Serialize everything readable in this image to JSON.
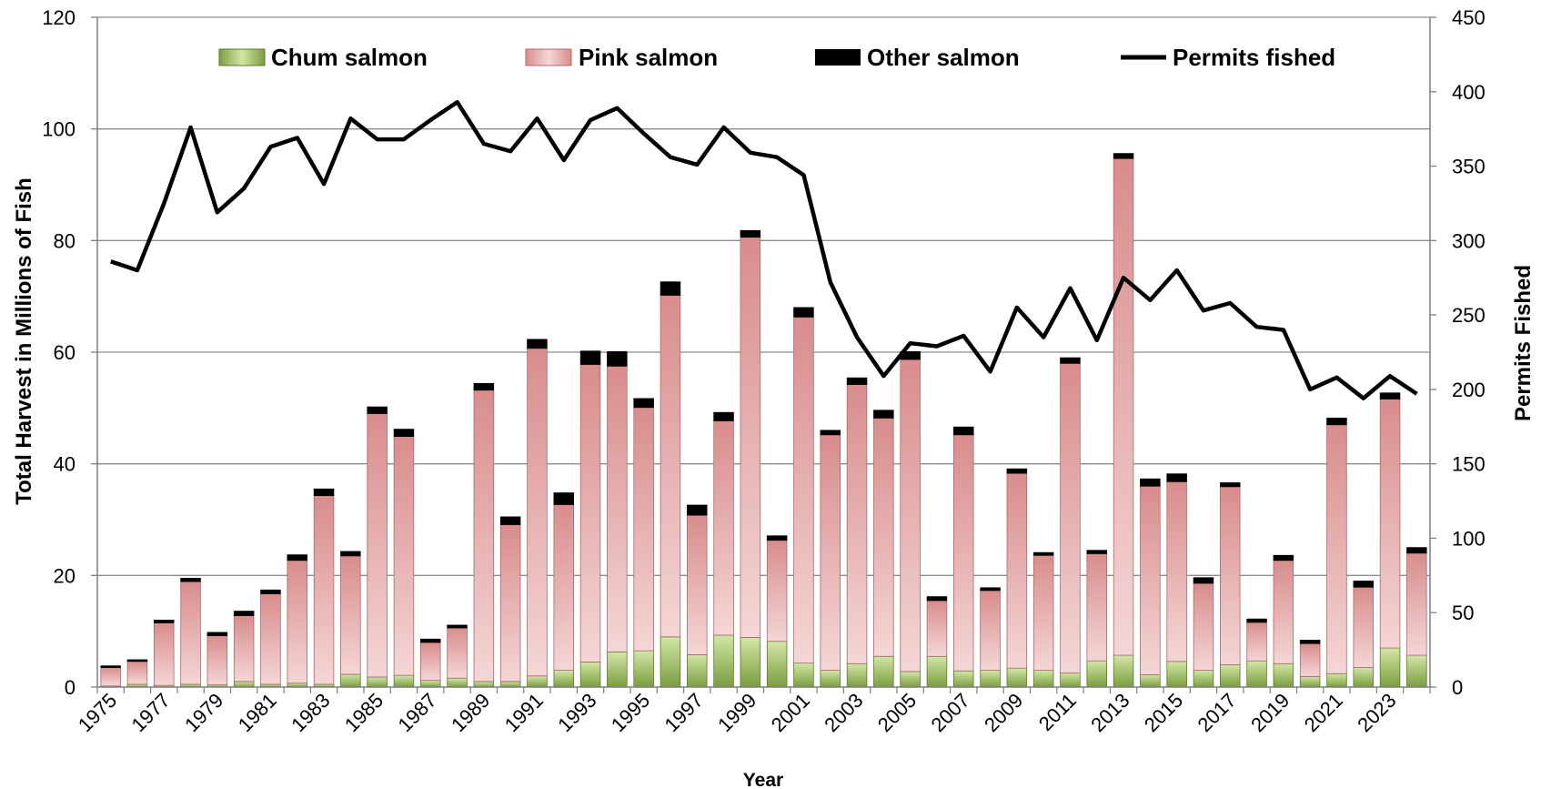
{
  "chart_data": {
    "type": "bar",
    "subtype": "stacked bar with line on secondary axis",
    "xlabel": "Year",
    "ylabel": "Total Harvest in Millions  of Fish",
    "y2label": "Permits Fished",
    "ylim": [
      0,
      120
    ],
    "y2lim": [
      0,
      450
    ],
    "yticks": [
      0,
      20,
      40,
      60,
      80,
      100,
      120
    ],
    "y2ticks": [
      0,
      50,
      100,
      150,
      200,
      250,
      300,
      350,
      400,
      450
    ],
    "grid": "horizontal",
    "legend_position": "top",
    "categories": [
      1975,
      1976,
      1977,
      1978,
      1979,
      1980,
      1981,
      1982,
      1983,
      1984,
      1985,
      1986,
      1987,
      1988,
      1989,
      1990,
      1991,
      1992,
      1993,
      1994,
      1995,
      1996,
      1997,
      1998,
      1999,
      2000,
      2001,
      2002,
      2003,
      2004,
      2005,
      2006,
      2007,
      2008,
      2009,
      2010,
      2011,
      2012,
      2013,
      2014,
      2015,
      2016,
      2017,
      2018,
      2019,
      2020,
      2021,
      2022,
      2023,
      2024
    ],
    "xtick_labels": [
      "1975",
      "1977",
      "1979",
      "1981",
      "1983",
      "1985",
      "1987",
      "1989",
      "1991",
      "1993",
      "1995",
      "1997",
      "1999",
      "2001",
      "2003",
      "2005",
      "2007",
      "2009",
      "2011",
      "2013",
      "2015",
      "2017",
      "2019",
      "2021",
      "2023"
    ],
    "series": [
      {
        "name": "Chum salmon",
        "axis": "left",
        "color": "#8db04f",
        "values": [
          0.2,
          0.5,
          0.3,
          0.5,
          0.4,
          1.0,
          0.5,
          0.7,
          0.5,
          2.3,
          1.8,
          2.1,
          1.2,
          1.6,
          1.0,
          1.0,
          2.0,
          3.0,
          4.5,
          6.3,
          6.5,
          9.0,
          5.8,
          9.3,
          8.9,
          8.2,
          4.3,
          3.0,
          4.2,
          5.5,
          2.8,
          5.5,
          2.9,
          3.0,
          3.4,
          3.0,
          2.5,
          4.7,
          5.7,
          2.2,
          4.6,
          3.0,
          4.0,
          4.7,
          4.2,
          1.9,
          2.4,
          3.5,
          7.0,
          5.7
        ]
      },
      {
        "name": "Pink salmon",
        "axis": "left",
        "color": "#d98f8f",
        "values": [
          3.3,
          4.1,
          11.2,
          18.4,
          8.8,
          11.8,
          16.2,
          22.0,
          33.8,
          21.2,
          47.2,
          42.8,
          6.8,
          9.0,
          52.2,
          28.1,
          58.7,
          29.7,
          53.3,
          51.2,
          43.6,
          61.2,
          25.0,
          38.4,
          71.7,
          18.1,
          62.0,
          42.2,
          50.0,
          42.7,
          55.9,
          10.0,
          42.3,
          14.3,
          34.9,
          20.6,
          55.5,
          19.2,
          89.0,
          33.8,
          32.2,
          15.6,
          31.9,
          6.9,
          18.5,
          5.9,
          44.6,
          14.4,
          44.6,
          18.3
        ]
      },
      {
        "name": "Other salmon",
        "axis": "left",
        "color": "#000000",
        "values": [
          0.3,
          0.3,
          0.5,
          0.6,
          0.6,
          0.8,
          0.7,
          1.0,
          1.2,
          0.8,
          1.2,
          1.3,
          0.6,
          0.5,
          1.2,
          1.4,
          1.6,
          2.1,
          2.4,
          2.6,
          1.6,
          2.4,
          1.8,
          1.5,
          1.2,
          0.8,
          1.7,
          0.8,
          1.2,
          1.4,
          1.4,
          0.7,
          1.4,
          0.5,
          0.8,
          0.5,
          1.0,
          0.6,
          0.9,
          1.3,
          1.4,
          1.0,
          0.7,
          0.6,
          0.9,
          0.6,
          1.2,
          1.1,
          1.1,
          1.0
        ]
      },
      {
        "name": "Permits fished",
        "axis": "right",
        "type": "line",
        "color": "#000000",
        "values": [
          286,
          280,
          325,
          376,
          319,
          335,
          363,
          369,
          338,
          382,
          368,
          368,
          381,
          393,
          365,
          360,
          382,
          354,
          381,
          389,
          372,
          356,
          351,
          376,
          359,
          356,
          344,
          272,
          235,
          209,
          231,
          229,
          236,
          212,
          255,
          235,
          268,
          233,
          275,
          260,
          280,
          253,
          258,
          242,
          240,
          200,
          208,
          194,
          209,
          197
        ]
      }
    ]
  }
}
